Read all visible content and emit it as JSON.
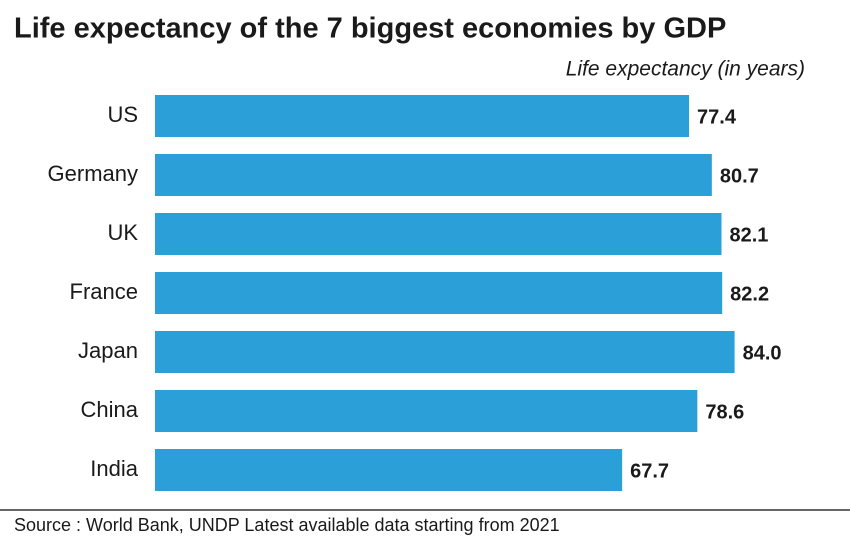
{
  "chart_data": {
    "type": "bar",
    "title": "Life expectancy of the 7 biggest economies by GDP",
    "x_label": "Life expectancy (in years)",
    "categories": [
      "US",
      "Germany",
      "UK",
      "France",
      "Japan",
      "China",
      "India"
    ],
    "values": [
      77.4,
      80.7,
      82.1,
      82.2,
      84.0,
      78.6,
      67.7
    ],
    "value_labels": [
      "77.4",
      "80.7",
      "82.1",
      "82.2",
      "84.0",
      "78.6",
      "67.7"
    ],
    "color": "#2a9fd8",
    "source": "Source : World Bank, UNDP Latest available data starting from 2021"
  }
}
